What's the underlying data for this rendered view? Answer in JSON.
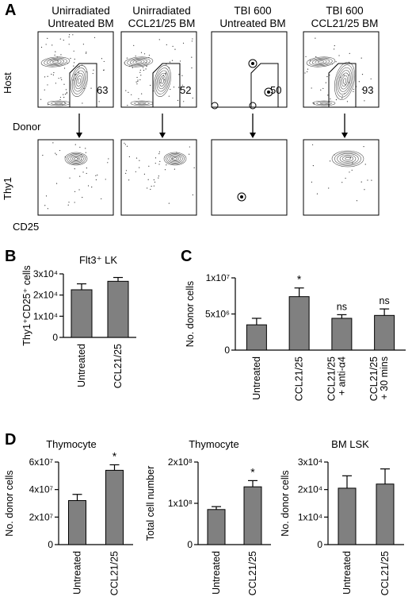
{
  "figure": {
    "panel_labels": {
      "A": "A",
      "B": "B",
      "C": "C",
      "D": "D"
    }
  },
  "panel_a": {
    "columns": [
      {
        "title_line1": "Unirradiated",
        "title_line2": "Untreated BM",
        "gate_percent": "63",
        "sample": "untreated-bm"
      },
      {
        "title_line1": "Unirradiated",
        "title_line2": "CCL21/25 BM",
        "gate_percent": "52",
        "sample": "ccl-bm"
      },
      {
        "title_line1": "TBI 600",
        "title_line2": "Untreated BM",
        "gate_percent": "50",
        "sample": "tbi-untreated"
      },
      {
        "title_line1": "TBI 600",
        "title_line2": "CCL21/25 BM",
        "gate_percent": "93",
        "sample": "tbi-ccl"
      }
    ],
    "top_row": {
      "y_axis": "Host",
      "x_axis": "Donor"
    },
    "bottom_row": {
      "y_axis": "Thy1",
      "x_axis": "CD25"
    }
  },
  "chart_data": [
    {
      "panel": "B",
      "type": "bar",
      "title": "Flt3⁺ LK",
      "ylabel": "Thy1⁺CD25⁺ cells",
      "categories": [
        "Untreated",
        "CCL21/25"
      ],
      "values": [
        22500,
        26500
      ],
      "errors": [
        2800,
        1800
      ],
      "ylim": [
        0,
        30000
      ],
      "yticks": [
        10000,
        20000,
        30000
      ],
      "ytick_labels": [
        "1x10⁴",
        "2x10⁴",
        "3x10⁴"
      ],
      "significance": [
        "",
        ""
      ]
    },
    {
      "panel": "C",
      "type": "bar",
      "title": "",
      "ylabel": "No. donor cells",
      "categories": [
        "Untreated",
        "CCL21/25",
        "CCL21/25\n+ anti-α4",
        "CCL21/25\n+ 30 mins"
      ],
      "values": [
        3500000,
        7400000,
        4400000,
        4800000
      ],
      "errors": [
        900000,
        1200000,
        500000,
        900000
      ],
      "ylim": [
        0,
        10000000
      ],
      "yticks": [
        5000000,
        10000000
      ],
      "ytick_labels": [
        "5x10⁶",
        "1x10⁷"
      ],
      "significance": [
        "",
        "*",
        "ns",
        "ns"
      ]
    },
    {
      "panel": "D1",
      "type": "bar",
      "title": "Thymocyte",
      "ylabel": "No. donor cells",
      "categories": [
        "Untreated",
        "CCL21/25"
      ],
      "values": [
        32000000,
        54000000
      ],
      "errors": [
        4500000,
        4000000
      ],
      "ylim": [
        0,
        60000000
      ],
      "yticks": [
        20000000,
        40000000,
        60000000
      ],
      "ytick_labels": [
        "2x10⁷",
        "4x10⁷",
        "6x10⁷"
      ],
      "significance": [
        "",
        "*"
      ]
    },
    {
      "panel": "D2",
      "type": "bar",
      "title": "Thymocyte",
      "ylabel": "Total cell number",
      "categories": [
        "Untreated",
        "CCL21/25"
      ],
      "values": [
        85000000,
        140000000
      ],
      "errors": [
        7000000,
        15000000
      ],
      "ylim": [
        0,
        200000000
      ],
      "yticks": [
        100000000,
        200000000
      ],
      "ytick_labels": [
        "1x10⁸",
        "2x10⁸"
      ],
      "significance": [
        "",
        "*"
      ]
    },
    {
      "panel": "D3",
      "type": "bar",
      "title": "BM LSK",
      "ylabel": "No. donor cells",
      "categories": [
        "Untreated",
        "CCL21/25"
      ],
      "values": [
        20500,
        22000
      ],
      "errors": [
        4500,
        5500
      ],
      "ylim": [
        0,
        30000
      ],
      "yticks": [
        10000,
        20000,
        30000
      ],
      "ytick_labels": [
        "1x10⁴",
        "2x10⁴",
        "3x10⁴"
      ],
      "significance": [
        "",
        ""
      ]
    }
  ]
}
